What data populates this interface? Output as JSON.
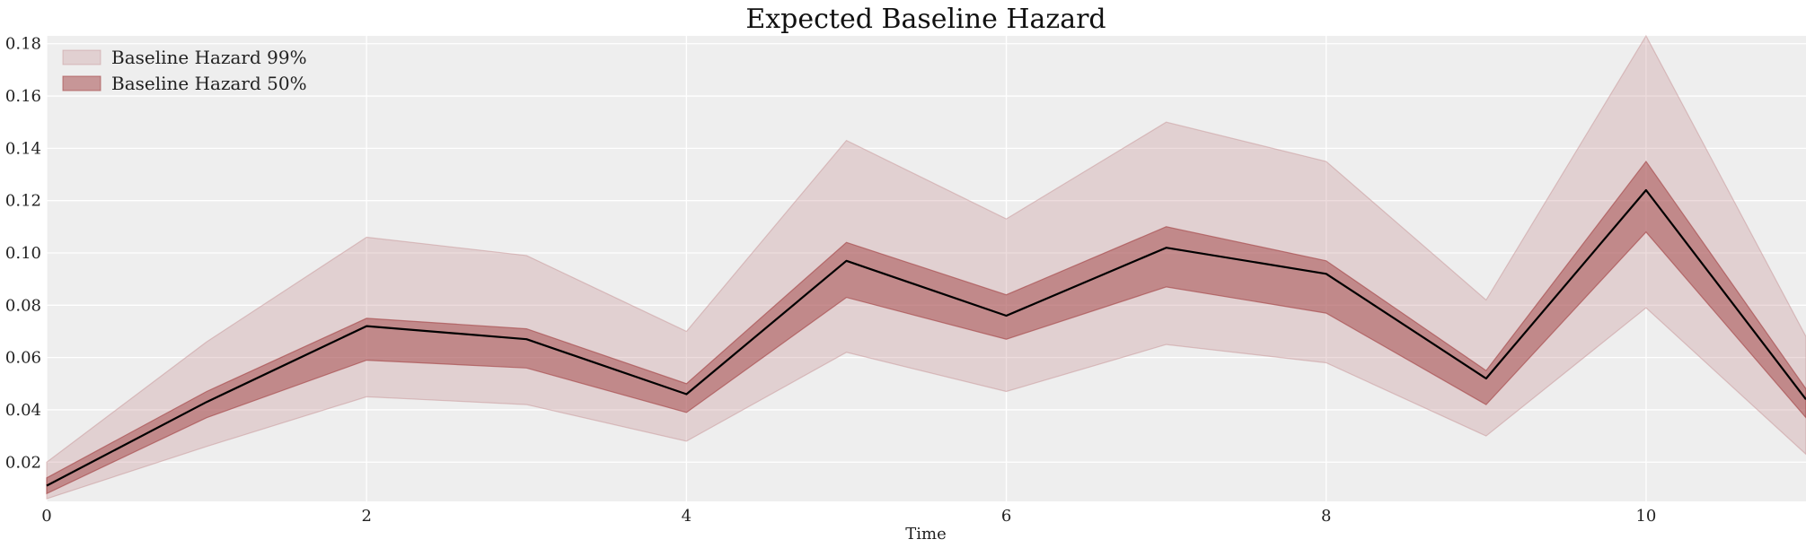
{
  "chart_data": {
    "type": "line",
    "title": "Expected Baseline Hazard",
    "xlabel": "Time",
    "ylabel": "",
    "xlim": [
      0,
      11
    ],
    "ylim": [
      0.005,
      0.183
    ],
    "x_ticks": [
      0,
      2,
      4,
      6,
      8,
      10
    ],
    "y_ticks": [
      0.02,
      0.04,
      0.06,
      0.08,
      0.1,
      0.12,
      0.14,
      0.16,
      0.18
    ],
    "y_tick_labels": [
      "0.02",
      "0.04",
      "0.06",
      "0.08",
      "0.10",
      "0.12",
      "0.14",
      "0.16",
      "0.18"
    ],
    "grid": true,
    "legend_position": "top-left",
    "x": [
      0,
      1,
      2,
      3,
      4,
      5,
      6,
      7,
      8,
      9,
      10,
      11
    ],
    "bands": [
      {
        "name": "Baseline Hazard 99%",
        "color": "#c48b8f",
        "opacity": 0.3,
        "lower": [
          0.006,
          0.026,
          0.045,
          0.042,
          0.028,
          0.062,
          0.047,
          0.065,
          0.058,
          0.03,
          0.079,
          0.023
        ],
        "upper": [
          0.02,
          0.066,
          0.106,
          0.099,
          0.07,
          0.143,
          0.113,
          0.15,
          0.135,
          0.082,
          0.183,
          0.068
        ]
      },
      {
        "name": "Baseline Hazard 50%",
        "color": "#a84e50",
        "opacity": 0.55,
        "lower": [
          0.008,
          0.037,
          0.059,
          0.056,
          0.039,
          0.083,
          0.067,
          0.087,
          0.077,
          0.042,
          0.108,
          0.037
        ],
        "upper": [
          0.014,
          0.047,
          0.075,
          0.071,
          0.05,
          0.104,
          0.084,
          0.11,
          0.097,
          0.055,
          0.135,
          0.048
        ]
      }
    ],
    "series": [
      {
        "color": "#000000",
        "values": [
          0.011,
          0.043,
          0.072,
          0.067,
          0.046,
          0.097,
          0.076,
          0.102,
          0.092,
          0.052,
          0.124,
          0.044
        ]
      }
    ]
  }
}
